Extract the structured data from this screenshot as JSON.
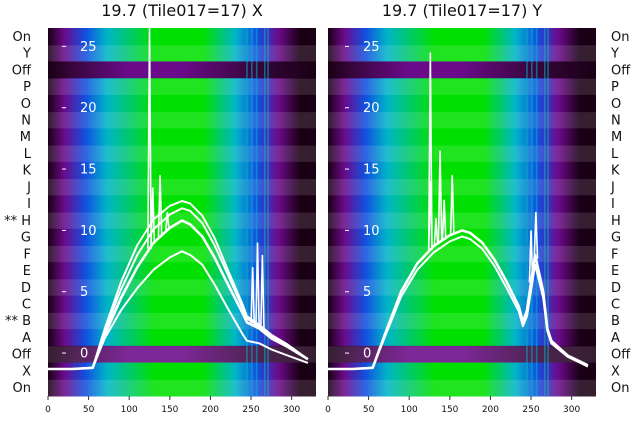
{
  "chart_data": [
    {
      "type": "line",
      "overlay": "heatmap",
      "title": "19.7 (Tile017=17) X",
      "rows": [
        "On",
        "Y",
        "Off",
        "P",
        "O",
        "N",
        "M",
        "L",
        "K",
        "J",
        "I",
        "** H",
        "G",
        "F",
        "E",
        "D",
        "C",
        "** B",
        "A",
        "Off",
        "X",
        "On"
      ],
      "row_label_side": "left",
      "xlim": [
        0,
        330
      ],
      "ylim": [
        -3.5,
        26.5
      ],
      "x_ticks": [
        0,
        50,
        100,
        150,
        200,
        250,
        300
      ],
      "y_ticks": [
        0,
        5,
        10,
        15,
        20,
        25
      ],
      "series": [
        {
          "x": [
            0,
            30,
            55,
            70,
            90,
            110,
            130,
            150,
            165,
            175,
            190,
            205,
            220,
            240,
            245,
            260,
            275,
            295,
            320
          ],
          "y": [
            -1.3,
            -1.3,
            -1.2,
            1.5,
            4.5,
            7.0,
            9.0,
            10.2,
            10.8,
            10.5,
            9.5,
            7.8,
            5.8,
            3.2,
            2.5,
            2.0,
            1.2,
            0.5,
            -0.5
          ]
        },
        {
          "x": [
            0,
            30,
            55,
            70,
            90,
            110,
            130,
            150,
            165,
            175,
            190,
            205,
            220,
            240,
            245,
            260,
            275,
            295,
            320
          ],
          "y": [
            -1.3,
            -1.3,
            -1.2,
            1.8,
            5.2,
            8.0,
            10.1,
            11.3,
            11.8,
            11.6,
            10.6,
            8.8,
            6.6,
            3.6,
            2.8,
            2.2,
            1.4,
            0.6,
            -0.5
          ]
        },
        {
          "x": [
            0,
            30,
            55,
            70,
            90,
            110,
            130,
            150,
            165,
            175,
            190,
            205,
            220,
            240,
            245,
            260,
            275,
            295,
            320
          ],
          "y": [
            -1.3,
            -1.3,
            -1.2,
            2.0,
            5.8,
            8.8,
            10.9,
            12.0,
            12.4,
            12.2,
            11.2,
            9.4,
            7.0,
            3.9,
            3.0,
            2.3,
            1.5,
            0.7,
            -0.5
          ]
        },
        {
          "x": [
            0,
            30,
            55,
            70,
            90,
            110,
            130,
            150,
            165,
            175,
            190,
            205,
            220,
            240,
            245,
            260,
            275,
            295,
            320
          ],
          "y": [
            -1.3,
            -1.3,
            -1.2,
            1.2,
            3.5,
            5.3,
            6.8,
            7.8,
            8.3,
            8.0,
            7.2,
            5.6,
            3.8,
            1.5,
            1.0,
            0.8,
            0.3,
            -0.2,
            -0.8
          ]
        }
      ],
      "spikes": [
        {
          "x": 125,
          "y": 26.5
        },
        {
          "x": 129,
          "y": 13.5
        },
        {
          "x": 138,
          "y": 14.5
        },
        {
          "x": 147,
          "y": 11.5
        },
        {
          "x": 252,
          "y": 7.0
        },
        {
          "x": 258,
          "y": 9.0
        },
        {
          "x": 264,
          "y": 8.0
        }
      ],
      "colors": {
        "low": "#1a0014",
        "mid": "#6b0a8a",
        "blue": "#1250e0",
        "teal": "#00b4c8",
        "green": "#00e000",
        "line": "#ffffff"
      }
    },
    {
      "type": "line",
      "overlay": "heatmap",
      "title": "19.7 (Tile017=17) Y",
      "rows": [
        "On",
        "Y",
        "Off",
        "P",
        "O",
        "N",
        "M",
        "L",
        "K",
        "J",
        "I",
        "H",
        "G",
        "F",
        "E",
        "D",
        "C",
        "B",
        "A",
        "Off",
        "X",
        "On"
      ],
      "row_label_side": "right",
      "xlim": [
        0,
        330
      ],
      "ylim": [
        -3.5,
        26.5
      ],
      "x_ticks": [
        0,
        50,
        100,
        150,
        200,
        250,
        300
      ],
      "y_ticks": [
        0,
        5,
        10,
        15,
        20,
        25
      ],
      "series": [
        {
          "x": [
            0,
            30,
            55,
            70,
            90,
            110,
            130,
            150,
            165,
            175,
            190,
            205,
            220,
            235,
            240,
            245,
            255,
            265,
            270,
            275,
            295,
            320
          ],
          "y": [
            -1.3,
            -1.3,
            -1.2,
            1.5,
            5.0,
            7.3,
            8.7,
            9.6,
            10.0,
            9.8,
            9.0,
            7.6,
            5.8,
            3.8,
            2.5,
            3.5,
            8.0,
            5.0,
            2.0,
            1.0,
            -0.2,
            -1.0
          ]
        },
        {
          "x": [
            0,
            30,
            55,
            70,
            90,
            110,
            130,
            150,
            165,
            175,
            190,
            205,
            220,
            235,
            240,
            245,
            255,
            265,
            270,
            275,
            295,
            320
          ],
          "y": [
            -1.3,
            -1.3,
            -1.2,
            1.3,
            4.6,
            6.8,
            8.2,
            9.1,
            9.5,
            9.3,
            8.5,
            7.1,
            5.3,
            3.4,
            2.2,
            3.0,
            7.2,
            4.5,
            1.8,
            0.8,
            -0.3,
            -1.1
          ]
        }
      ],
      "spikes": [
        {
          "x": 126,
          "y": 14.0
        },
        {
          "x": 133,
          "y": 11.0
        },
        {
          "x": 138,
          "y": 16.5
        },
        {
          "x": 143,
          "y": 12.5
        },
        {
          "x": 153,
          "y": 14.5
        },
        {
          "x": 126,
          "y": 24.5
        },
        {
          "x": 250,
          "y": 10.0
        },
        {
          "x": 256,
          "y": 11.5
        }
      ],
      "colors": {
        "low": "#1a0014",
        "mid": "#6b0a8a",
        "blue": "#1250e0",
        "teal": "#00b4c8",
        "green": "#00e000",
        "line": "#ffffff"
      }
    }
  ]
}
